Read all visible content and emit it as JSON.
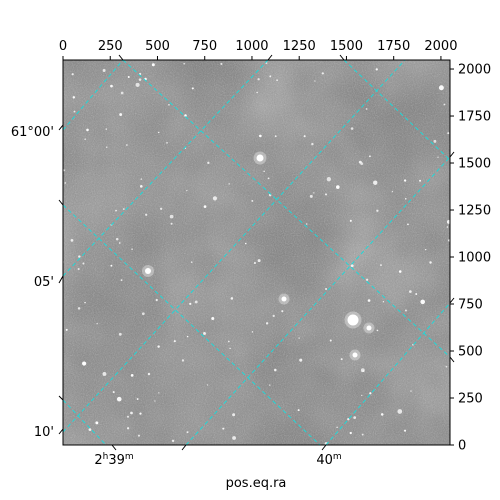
{
  "chart_data": {
    "type": "image",
    "xlabel": "pos.eq.ra",
    "pixel_axes": {
      "x_ticks": [
        "0",
        "250",
        "500",
        "750",
        "1000",
        "1250",
        "1500",
        "1750",
        "2000"
      ],
      "x_tick_values": [
        0,
        250,
        500,
        750,
        1000,
        1250,
        1500,
        1750,
        2000
      ],
      "y_ticks": [
        "0",
        "250",
        "500",
        "750",
        "1000",
        "1250",
        "1500",
        "1750",
        "2000"
      ],
      "y_tick_values": [
        0,
        250,
        500,
        750,
        1000,
        1250,
        1500,
        1750,
        2000
      ],
      "xlim": [
        0,
        2048
      ],
      "ylim": [
        0,
        2048
      ]
    },
    "world_axes": {
      "ra_labels": [
        {
          "h": "2",
          "h_unit": "h",
          "m": "39",
          "m_unit": "m"
        },
        {
          "h": "",
          "h_unit": "",
          "m": "40",
          "m_unit": "m"
        }
      ],
      "dec_labels": [
        "61°00'",
        "05'",
        "10'"
      ]
    },
    "grid": true,
    "grid_color": "#20d8d8",
    "image_colormap": "gray"
  }
}
